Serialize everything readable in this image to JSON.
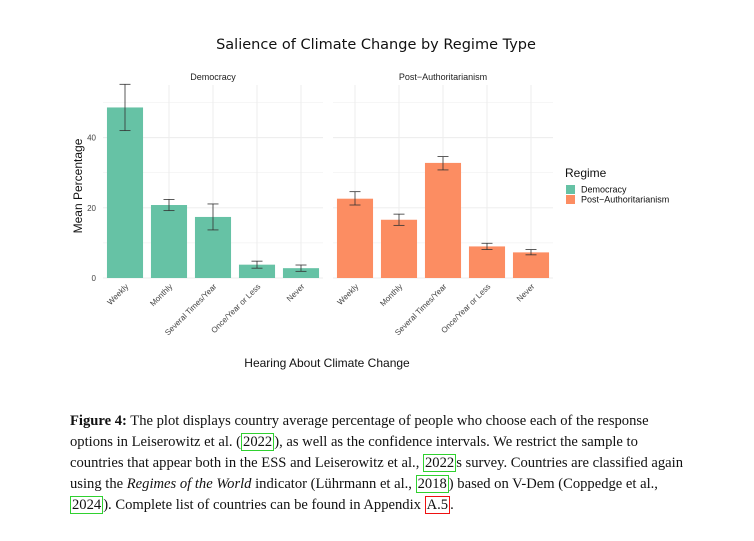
{
  "chart_data": {
    "type": "bar",
    "title": "Salience of Climate Change by Regime Type",
    "xlabel": "Hearing About Climate Change",
    "ylabel": "Mean Percentage",
    "ylim": [
      0,
      55
    ],
    "yticks": [
      0,
      20,
      40
    ],
    "grid": true,
    "categories": [
      "Weekly",
      "Monthly",
      "Several Times/Year",
      "Once/Year or Less",
      "Never"
    ],
    "legend": {
      "title": "Regime",
      "placement": "right"
    },
    "series": [
      {
        "name": "Democracy",
        "facet_label": "Democracy",
        "color": "#66c2a5",
        "values": [
          48.6,
          20.8,
          17.4,
          3.8,
          2.8
        ],
        "ci_low": [
          42.0,
          19.2,
          13.7,
          2.8,
          1.9
        ],
        "ci_high": [
          55.2,
          22.4,
          21.1,
          4.8,
          3.7
        ]
      },
      {
        "name": "Post−Authoritarianism",
        "facet_label": "Post−Authoritarianism",
        "color": "#fc8d62",
        "values": [
          22.6,
          16.6,
          32.8,
          9.0,
          7.3
        ],
        "ci_low": [
          20.8,
          15.0,
          30.8,
          8.1,
          6.6
        ],
        "ci_high": [
          24.6,
          18.2,
          34.6,
          9.9,
          8.1
        ]
      }
    ]
  },
  "caption": {
    "label": "Figure 4:",
    "t1": " The plot displays country average percentage of people who choose each of the response options in Leiserowitz et al. (",
    "c1": "2022",
    "t2": "), as well as the confidence intervals.  We restrict the sample to countries that appear both in the ESS and Leiserowitz et al., ",
    "c2": "2022",
    "t3": "s survey. Countries are classified again using the ",
    "italic": "Regimes of the World",
    "t4": " indicator (Lührmann et al., ",
    "c3": "2018",
    "t5": ") based on V-Dem (Coppedge et al., ",
    "c4": "2024",
    "t6": "). Complete list of countries can be found in Appendix ",
    "c5": "A.5",
    "t7": "."
  }
}
